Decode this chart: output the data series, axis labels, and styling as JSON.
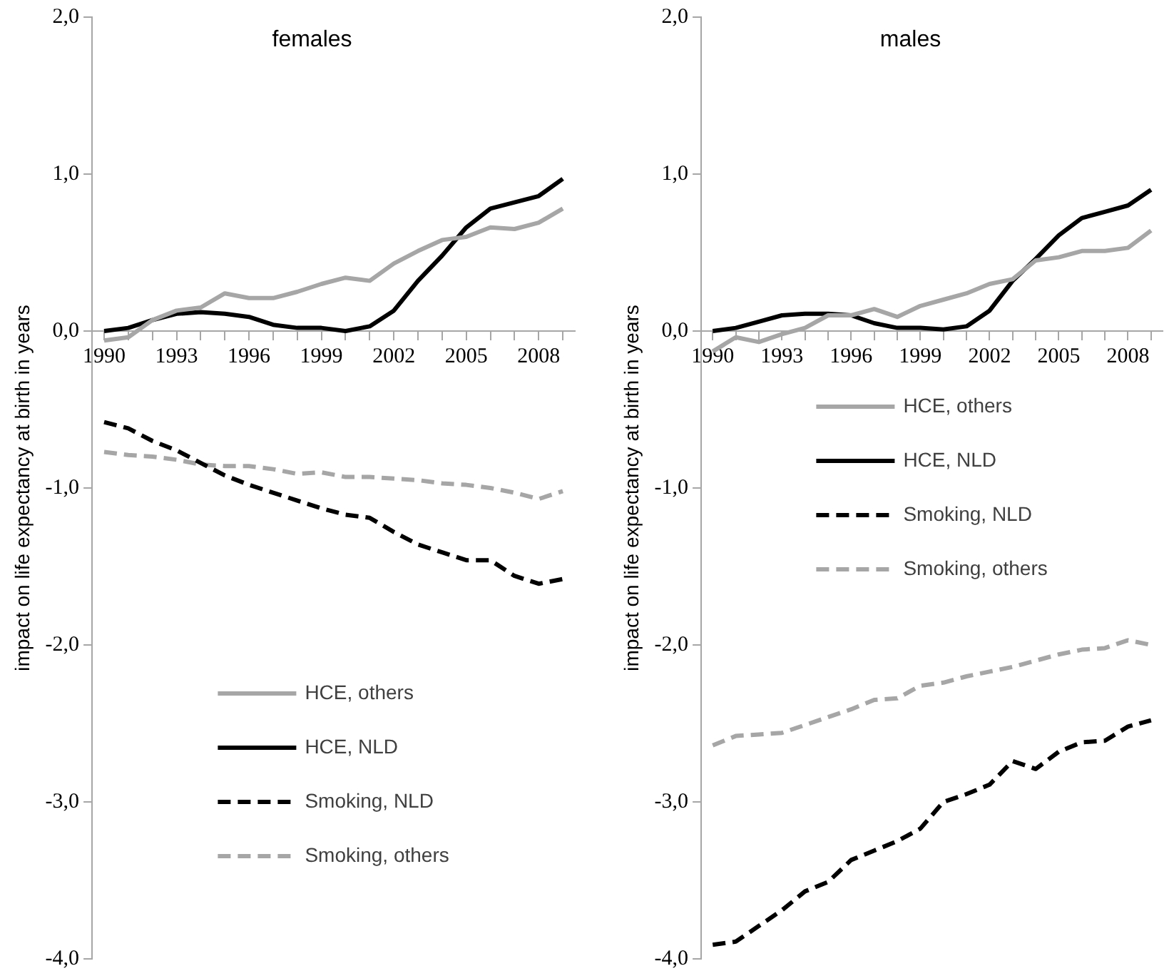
{
  "chart_data": [
    {
      "type": "line",
      "title": "females",
      "ylabel": "impact on life expectancy at birth in years",
      "categories": [
        "1990",
        null,
        null,
        "1993",
        null,
        null,
        "1996",
        null,
        null,
        "1999",
        null,
        null,
        "2002",
        null,
        null,
        "2005",
        null,
        null,
        "2008",
        null
      ],
      "series": [
        {
          "name": "HCE, others",
          "color": "#a6a6a6",
          "line_style": "solid",
          "values": [
            -0.06,
            -0.04,
            0.07,
            0.13,
            0.15,
            0.24,
            0.21,
            0.21,
            0.25,
            0.3,
            0.34,
            0.32,
            0.43,
            0.51,
            0.58,
            0.6,
            0.66,
            0.65,
            0.69,
            0.78
          ]
        },
        {
          "name": "HCE, NLD",
          "color": "#000000",
          "line_style": "solid",
          "values": [
            0.0,
            0.02,
            0.07,
            0.11,
            0.12,
            0.11,
            0.09,
            0.04,
            0.02,
            0.02,
            0.0,
            0.03,
            0.13,
            0.32,
            0.48,
            0.66,
            0.78,
            0.82,
            0.86,
            0.97
          ]
        },
        {
          "name": "Smoking, NLD",
          "color": "#000000",
          "line_style": "dashed",
          "values": [
            -0.58,
            -0.62,
            -0.7,
            -0.76,
            -0.84,
            -0.92,
            -0.98,
            -1.03,
            -1.08,
            -1.13,
            -1.17,
            -1.19,
            -1.28,
            -1.36,
            -1.41,
            -1.46,
            -1.46,
            -1.56,
            -1.61,
            -1.58
          ]
        },
        {
          "name": "Smoking, others",
          "color": "#a6a6a6",
          "line_style": "dashed",
          "values": [
            -0.77,
            -0.79,
            -0.8,
            -0.82,
            -0.85,
            -0.86,
            -0.86,
            -0.88,
            -0.91,
            -0.9,
            -0.93,
            -0.93,
            -0.94,
            -0.95,
            -0.97,
            -0.98,
            -1.0,
            -1.03,
            -1.07,
            -1.02
          ]
        }
      ],
      "ylim": [
        -4,
        2
      ],
      "yticks": [
        {
          "value": -4,
          "label": "-4,0"
        },
        {
          "value": -3,
          "label": "-3,0"
        },
        {
          "value": -2,
          "label": "-2,0"
        },
        {
          "value": -1,
          "label": "-1,0"
        },
        {
          "value": 0,
          "label": "0,0"
        },
        {
          "value": 1,
          "label": "1,0"
        },
        {
          "value": 2,
          "label": "2,0"
        }
      ],
      "grid": false,
      "legend": "bottom",
      "marker": "none"
    },
    {
      "type": "line",
      "title": "males",
      "ylabel": "impact on life expectancy at birth in years",
      "categories": [
        "1990",
        null,
        null,
        "1993",
        null,
        null,
        "1996",
        null,
        null,
        "1999",
        null,
        null,
        "2002",
        null,
        null,
        "2005",
        null,
        null,
        "2008",
        null
      ],
      "series": [
        {
          "name": "HCE, others",
          "color": "#a6a6a6",
          "line_style": "solid",
          "values": [
            -0.13,
            -0.04,
            -0.07,
            -0.02,
            0.02,
            0.1,
            0.1,
            0.14,
            0.09,
            0.16,
            0.2,
            0.24,
            0.3,
            0.33,
            0.45,
            0.47,
            0.51,
            0.51,
            0.53,
            0.64
          ]
        },
        {
          "name": "HCE, NLD",
          "color": "#000000",
          "line_style": "solid",
          "values": [
            0.0,
            0.02,
            0.06,
            0.1,
            0.11,
            0.11,
            0.1,
            0.05,
            0.02,
            0.02,
            0.01,
            0.03,
            0.13,
            0.32,
            0.46,
            0.61,
            0.72,
            0.76,
            0.8,
            0.9
          ]
        },
        {
          "name": "Smoking, NLD",
          "color": "#000000",
          "line_style": "dashed",
          "values": [
            -3.91,
            -3.89,
            -3.79,
            -3.69,
            -3.57,
            -3.51,
            -3.37,
            -3.31,
            -3.25,
            -3.17,
            -3.0,
            -2.95,
            -2.89,
            -2.74,
            -2.79,
            -2.68,
            -2.62,
            -2.61,
            -2.52,
            -2.48
          ]
        },
        {
          "name": "Smoking, others",
          "color": "#a6a6a6",
          "line_style": "dashed",
          "values": [
            -2.64,
            -2.58,
            -2.57,
            -2.56,
            -2.51,
            -2.46,
            -2.41,
            -2.35,
            -2.34,
            -2.26,
            -2.24,
            -2.2,
            -2.17,
            -2.14,
            -2.1,
            -2.06,
            -2.03,
            -2.02,
            -1.97,
            -2.0
          ]
        }
      ],
      "ylim": [
        -4,
        2
      ],
      "yticks": [
        {
          "value": -4,
          "label": "-4,0"
        },
        {
          "value": -3,
          "label": "-3,0"
        },
        {
          "value": -2,
          "label": "-2,0"
        },
        {
          "value": -1,
          "label": "-1,0"
        },
        {
          "value": 0,
          "label": "0,0"
        },
        {
          "value": 1,
          "label": "1,0"
        },
        {
          "value": 2,
          "label": "2,0"
        }
      ],
      "grid": false,
      "legend": "center",
      "marker": "none"
    }
  ]
}
